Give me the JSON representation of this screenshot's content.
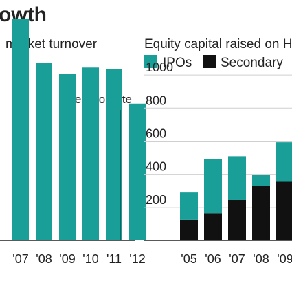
{
  "headline": "owth",
  "colors": {
    "teal": "#1a9e98",
    "black": "#111111",
    "axis": "#222222",
    "grid": "#cfcfcf",
    "text": "#222222"
  },
  "chart_data": [
    {
      "type": "bar",
      "title": "market turnover",
      "categories": [
        "'07",
        "'08",
        "'09",
        "'10",
        "'11",
        "'12"
      ],
      "series": [
        {
          "values": [
            1200,
            960,
            900,
            935,
            925,
            740
          ]
        }
      ],
      "ylim": [
        0,
        1300
      ],
      "annotations": [
        "Year-to-date"
      ],
      "grid": false
    },
    {
      "type": "bar",
      "stacked": true,
      "title": "Equity capital raised on HK",
      "legend": [
        "IPOs",
        "Secondary"
      ],
      "categories": [
        "'05",
        "'06",
        "'07",
        "'08",
        "'09"
      ],
      "series": [
        {
          "name": "IPOs",
          "values": [
            165,
            328,
            264,
            65,
            238
          ]
        },
        {
          "name": "Secondary",
          "values": [
            125,
            165,
            245,
            330,
            355
          ]
        }
      ],
      "yticks": [
        "1000",
        "800",
        "600",
        "400",
        "200"
      ],
      "ylim": [
        0,
        1100
      ],
      "grid": true,
      "legend_position": "top-left"
    }
  ]
}
